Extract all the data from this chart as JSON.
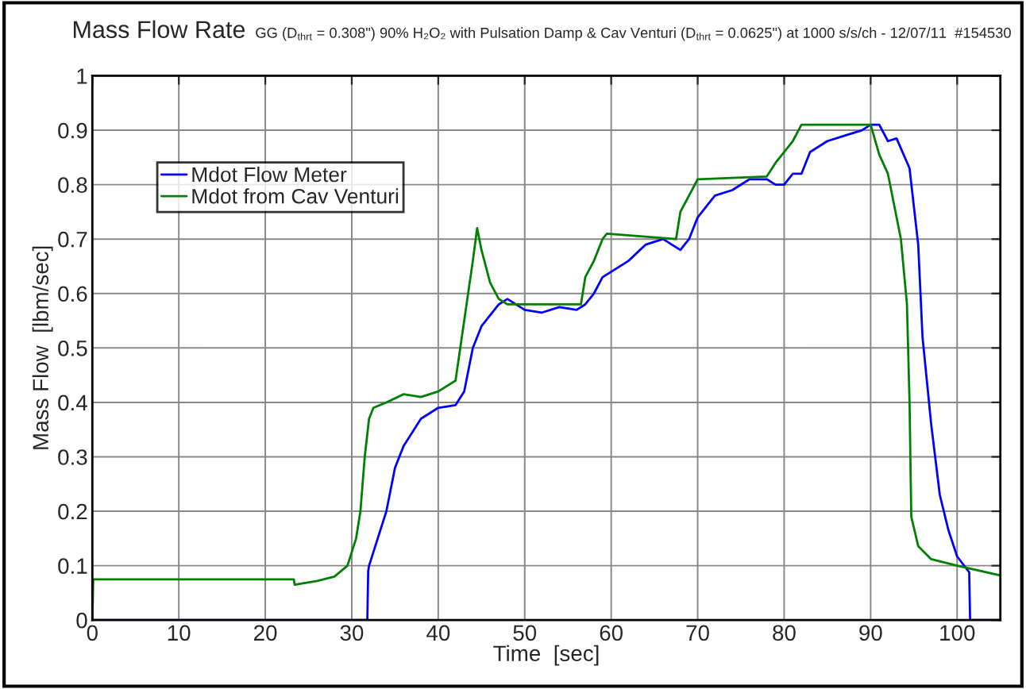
{
  "chart_data": {
    "type": "line",
    "title": "Mass Flow Rate",
    "subtitle": "GG (D$_{thrt}$ = 0.308\") 90% H₂O₂ with Pulsation Damp & Cav Venturi (D$_{thrt}$ = 0.0625\") at 1000 s/s/ch - 12/07/11  #154530",
    "xlabel": "Time  [sec]",
    "ylabel": "Mass Flow  [lbm/sec]",
    "xlim": [
      0,
      105
    ],
    "xticks": [
      0,
      10,
      20,
      30,
      40,
      50,
      60,
      70,
      80,
      90,
      100
    ],
    "ylim": [
      0,
      1
    ],
    "yticks": [
      0,
      0.1,
      0.2,
      0.3,
      0.4,
      0.5,
      0.6,
      0.7,
      0.8,
      0.9,
      1
    ],
    "grid": true,
    "legend": "top left",
    "series": [
      {
        "name": "Mdot Flow Meter",
        "color": "#0000ff",
        "x": [
          0,
          31.8,
          31.9,
          32,
          34,
          35,
          36,
          38,
          40,
          42,
          43,
          44,
          45,
          47,
          48,
          50,
          52,
          54,
          56,
          57,
          58,
          59,
          60,
          62,
          64,
          66,
          67,
          68,
          69,
          70,
          72,
          74,
          76,
          78,
          79,
          80,
          81,
          82,
          83,
          85,
          87,
          89,
          90,
          91,
          92,
          93,
          94.5,
          95.5,
          96,
          97,
          98,
          99,
          100,
          101.4,
          101.5,
          105
        ],
        "values": [
          0,
          0,
          0.09,
          0.1,
          0.2,
          0.28,
          0.32,
          0.37,
          0.39,
          0.395,
          0.42,
          0.5,
          0.54,
          0.58,
          0.59,
          0.57,
          0.565,
          0.575,
          0.57,
          0.58,
          0.6,
          0.63,
          0.64,
          0.66,
          0.69,
          0.7,
          0.69,
          0.68,
          0.7,
          0.74,
          0.78,
          0.79,
          0.81,
          0.81,
          0.8,
          0.8,
          0.82,
          0.82,
          0.86,
          0.88,
          0.89,
          0.9,
          0.91,
          0.91,
          0.88,
          0.885,
          0.83,
          0.69,
          0.52,
          0.36,
          0.23,
          0.165,
          0.117,
          0.088,
          0,
          0
        ]
      },
      {
        "name": "Mdot from Cav Venturi",
        "color": "#008000",
        "x": [
          0,
          0.1,
          23.3,
          23.4,
          26,
          28,
          29.5,
          30.5,
          31,
          31.5,
          32,
          32.5,
          34,
          36,
          38,
          40,
          42,
          43,
          44,
          44.5,
          45,
          46,
          47,
          48,
          56.5,
          57,
          58,
          59,
          59.5,
          67.5,
          68,
          69,
          70,
          78,
          79,
          81,
          82,
          89.5,
          90,
          91,
          92,
          93,
          93.5,
          94.2,
          94.5,
          94.7,
          95.5,
          97,
          100,
          105
        ],
        "values": [
          0,
          0.075,
          0.075,
          0.065,
          0.072,
          0.08,
          0.1,
          0.15,
          0.2,
          0.3,
          0.37,
          0.39,
          0.4,
          0.415,
          0.41,
          0.42,
          0.44,
          0.55,
          0.66,
          0.72,
          0.68,
          0.62,
          0.59,
          0.58,
          0.58,
          0.63,
          0.66,
          0.7,
          0.71,
          0.7,
          0.75,
          0.78,
          0.81,
          0.815,
          0.84,
          0.88,
          0.91,
          0.91,
          0.91,
          0.855,
          0.82,
          0.74,
          0.7,
          0.58,
          0.4,
          0.19,
          0.136,
          0.112,
          0.1,
          0.082
        ]
      }
    ]
  }
}
